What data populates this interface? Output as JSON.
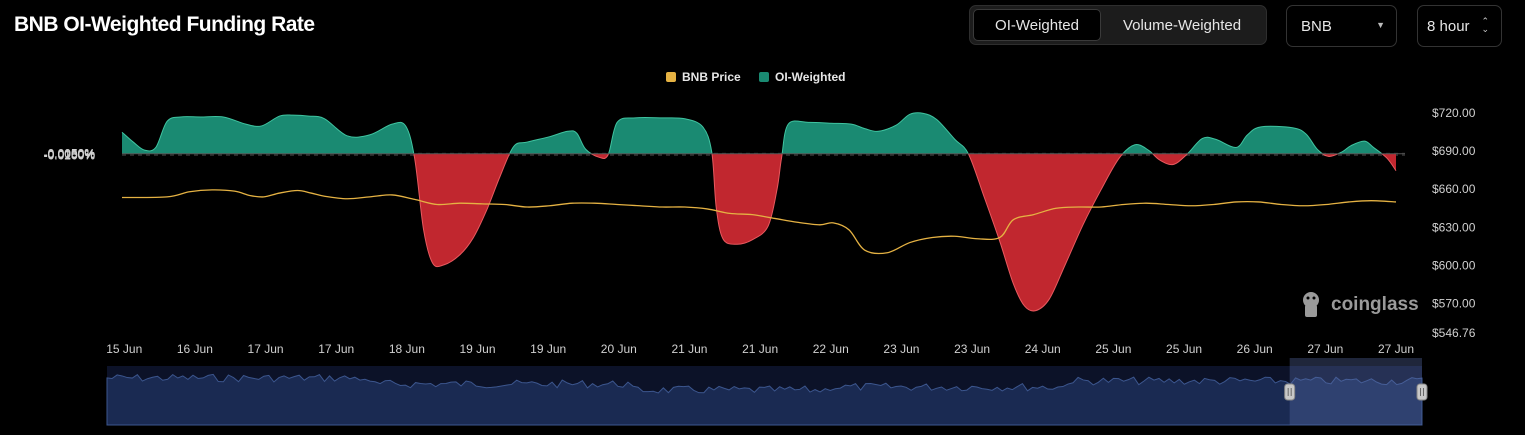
{
  "header": {
    "title": "BNB OI-Weighted Funding Rate",
    "tabs": [
      {
        "label": "OI-Weighted",
        "active": true
      },
      {
        "label": "Volume-Weighted",
        "active": false
      }
    ],
    "coin_select": {
      "value": "BNB",
      "icon": "chevron-down-icon"
    },
    "interval_select": {
      "value": "8 hour",
      "icon": "up-down-chevron-icon"
    }
  },
  "watermark": {
    "text": "coinglass",
    "icon": "coinglass-logo-icon"
  },
  "colors": {
    "positive": "#1a8a72",
    "negative": "#c1272f",
    "price": "#e5b243",
    "navigator": "#1a2a52",
    "navigator_line": "#3c568e"
  },
  "chart_data": {
    "type": "area",
    "title": "BNB OI-Weighted Funding Rate",
    "legend": {
      "position": "top-center",
      "items": [
        {
          "name": "BNB Price",
          "color": "#e5b243"
        },
        {
          "name": "OI-Weighted",
          "color": "#1a8a72"
        }
      ]
    },
    "x_tick_labels": [
      "15 Jun",
      "16 Jun",
      "17 Jun",
      "17 Jun",
      "18 Jun",
      "19 Jun",
      "19 Jun",
      "20 Jun",
      "21 Jun",
      "21 Jun",
      "22 Jun",
      "23 Jun",
      "23 Jun",
      "24 Jun",
      "25 Jun",
      "25 Jun",
      "26 Jun",
      "27 Jun",
      "27 Jun"
    ],
    "y_left": {
      "unit": "%",
      "ticks": [
        "0.0050%",
        "0%",
        "-0.0050%",
        "-0.0100%",
        "-0.0150%",
        "-0.0200%"
      ],
      "range": [
        -0.02,
        0.0051
      ]
    },
    "y_right": {
      "ticks": [
        "$720.00",
        "$690.00",
        "$660.00",
        "$630.00",
        "$600.00",
        "$570.00",
        "$546.76"
      ],
      "range": [
        546.76,
        724
      ]
    },
    "x_range": [
      0,
      57
    ],
    "grid": "horizontal dashed",
    "series": [
      {
        "name": "OI-Weighted",
        "axis": "left",
        "points": [
          [
            0,
            0.0024
          ],
          [
            0.5,
            0.0013
          ],
          [
            1,
            0.0004
          ],
          [
            1.5,
            0.0007
          ],
          [
            2,
            0.0036
          ],
          [
            2.6,
            0.0041
          ],
          [
            3.5,
            0.0041
          ],
          [
            4.5,
            0.0041
          ],
          [
            5.5,
            0.0033
          ],
          [
            6.2,
            0.0031
          ],
          [
            7,
            0.0042
          ],
          [
            7.6,
            0.0043
          ],
          [
            8.3,
            0.0042
          ],
          [
            9,
            0.0039
          ],
          [
            10,
            0.002
          ],
          [
            11,
            0.0021
          ],
          [
            12,
            0.0033
          ],
          [
            12.6,
            0.0031
          ],
          [
            13,
            -0.0005
          ],
          [
            13.4,
            -0.0085
          ],
          [
            13.8,
            -0.0122
          ],
          [
            14.3,
            -0.0124
          ],
          [
            15,
            -0.0113
          ],
          [
            15.6,
            -0.0094
          ],
          [
            16.2,
            -0.0063
          ],
          [
            16.8,
            -0.0025
          ],
          [
            17.4,
            0.0008
          ],
          [
            18,
            0.0013
          ],
          [
            19,
            0.0019
          ],
          [
            19.8,
            0.0025
          ],
          [
            20.2,
            0.0023
          ],
          [
            20.6,
            0.0005
          ],
          [
            21.2,
            -0.0004
          ],
          [
            21.6,
            -0.0001
          ],
          [
            22,
            0.0035
          ],
          [
            22.8,
            0.004
          ],
          [
            24,
            0.004
          ],
          [
            25,
            0.0039
          ],
          [
            25.8,
            0.003
          ],
          [
            26.2,
            0.0002
          ],
          [
            26.4,
            -0.006
          ],
          [
            26.7,
            -0.0095
          ],
          [
            27.3,
            -0.0101
          ],
          [
            28,
            -0.0096
          ],
          [
            28.7,
            -0.0081
          ],
          [
            29.1,
            -0.004
          ],
          [
            29.3,
            -0.0005
          ],
          [
            29.6,
            0.0033
          ],
          [
            30.5,
            0.0035
          ],
          [
            31.5,
            0.0034
          ],
          [
            32.4,
            0.0033
          ],
          [
            33,
            0.0028
          ],
          [
            33.6,
            0.0025
          ],
          [
            34.4,
            0.0032
          ],
          [
            35,
            0.0044
          ],
          [
            35.6,
            0.0045
          ],
          [
            36.2,
            0.0038
          ],
          [
            37,
            0.0016
          ],
          [
            37.6,
            0.0
          ],
          [
            38.3,
            -0.0048
          ],
          [
            39,
            -0.0098
          ],
          [
            39.6,
            -0.0145
          ],
          [
            40.1,
            -0.017
          ],
          [
            40.6,
            -0.0175
          ],
          [
            41.2,
            -0.0162
          ],
          [
            41.9,
            -0.0124
          ],
          [
            42.7,
            -0.0079
          ],
          [
            43.5,
            -0.004
          ],
          [
            44.3,
            -0.0005
          ],
          [
            45,
            0.001
          ],
          [
            45.6,
            0.0004
          ],
          [
            46.1,
            -0.0007
          ],
          [
            46.7,
            -0.0012
          ],
          [
            47.3,
            -0.0001
          ],
          [
            48,
            0.0017
          ],
          [
            48.6,
            0.0016
          ],
          [
            49.5,
            0.0007
          ],
          [
            50,
            0.0021
          ],
          [
            50.6,
            0.003
          ],
          [
            52,
            0.0029
          ],
          [
            52.6,
            0.0022
          ],
          [
            53.1,
            0.0005
          ],
          [
            53.6,
            -0.0003
          ],
          [
            54.2,
            0.0002
          ],
          [
            54.6,
            0.0009
          ],
          [
            55.2,
            0.0014
          ],
          [
            55.6,
            0.0007
          ],
          [
            56.2,
            -0.0005
          ],
          [
            56.6,
            -0.0019
          ]
        ]
      },
      {
        "name": "BNB Price",
        "axis": "right",
        "points": [
          [
            0,
            653.5
          ],
          [
            2,
            654
          ],
          [
            3,
            658
          ],
          [
            4,
            659.5
          ],
          [
            5,
            658.5
          ],
          [
            5.7,
            655
          ],
          [
            6.3,
            654
          ],
          [
            7,
            657
          ],
          [
            7.8,
            659
          ],
          [
            8.4,
            657
          ],
          [
            9,
            654.5
          ],
          [
            10,
            652.5
          ],
          [
            11,
            654
          ],
          [
            12,
            655.5
          ],
          [
            13,
            652
          ],
          [
            14,
            648
          ],
          [
            15,
            649
          ],
          [
            16,
            648.5
          ],
          [
            17,
            648
          ],
          [
            18,
            646
          ],
          [
            19,
            647
          ],
          [
            20,
            649
          ],
          [
            21,
            649
          ],
          [
            22,
            648
          ],
          [
            23,
            647
          ],
          [
            24,
            646
          ],
          [
            25,
            646
          ],
          [
            26,
            644.5
          ],
          [
            27,
            641
          ],
          [
            28,
            640
          ],
          [
            29,
            637
          ],
          [
            30,
            634
          ],
          [
            31,
            632
          ],
          [
            31.6,
            633.5
          ],
          [
            32.3,
            628
          ],
          [
            33,
            612
          ],
          [
            34,
            610
          ],
          [
            35,
            618
          ],
          [
            36,
            622
          ],
          [
            37,
            623
          ],
          [
            38,
            621
          ],
          [
            39,
            622
          ],
          [
            39.6,
            636
          ],
          [
            40.5,
            640
          ],
          [
            41.5,
            645
          ],
          [
            42.5,
            646
          ],
          [
            43.5,
            646
          ],
          [
            44.5,
            648
          ],
          [
            45.5,
            649
          ],
          [
            46.5,
            648
          ],
          [
            47.5,
            647
          ],
          [
            48.5,
            648
          ],
          [
            49.5,
            650
          ],
          [
            50.5,
            650
          ],
          [
            51.5,
            648
          ],
          [
            52.5,
            647
          ],
          [
            53.5,
            648
          ],
          [
            54.5,
            650
          ],
          [
            55.5,
            651
          ],
          [
            56.6,
            650
          ]
        ]
      }
    ],
    "navigator": {
      "selected_range": [
        0.945,
        1.0
      ]
    }
  }
}
